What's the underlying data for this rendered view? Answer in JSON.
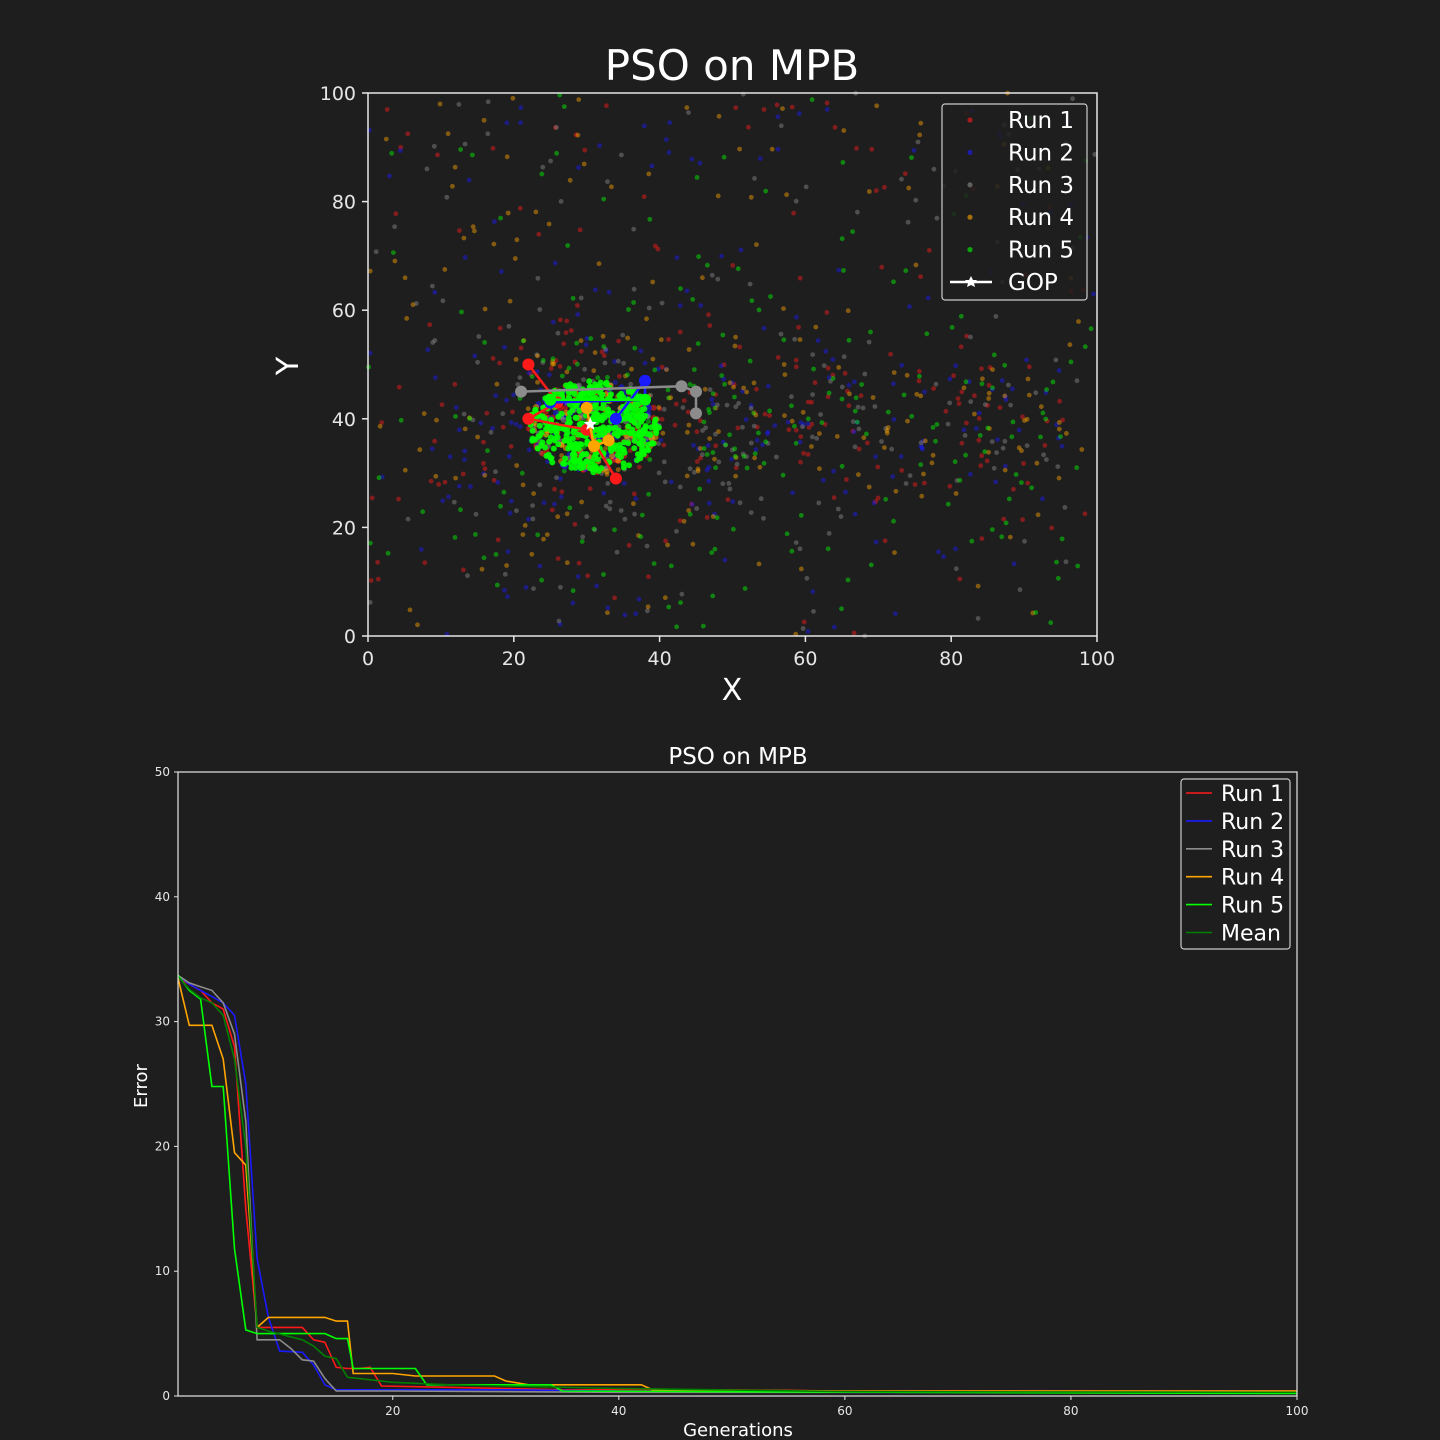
{
  "colors": {
    "background": "#1e1e1e",
    "axis": "#e6e6e6",
    "text": "#ffffff",
    "run1": "#ff1a1a",
    "run2": "#1a1aff",
    "run3": "#8c8c8c",
    "run4": "#ffa500",
    "run5": "#00ff00",
    "mean": "#008000",
    "gop": "#ffffff"
  },
  "chart_data": [
    {
      "type": "scatter",
      "title": "PSO on MPB",
      "xlabel": "X",
      "ylabel": "Y",
      "xlim": [
        0,
        100
      ],
      "ylim": [
        0,
        100
      ],
      "xticks": [
        0,
        20,
        40,
        60,
        80,
        100
      ],
      "yticks": [
        0,
        20,
        40,
        60,
        80,
        100
      ],
      "grid": false,
      "legend_position": "top-right",
      "legend": [
        "Run 1",
        "Run 2",
        "Run 3",
        "Run 4",
        "Run 5",
        "GOP"
      ],
      "swarm_center": {
        "x": 31,
        "y": 39
      },
      "cluster_extent": {
        "x": [
          22,
          40
        ],
        "y": [
          30,
          47
        ]
      },
      "gop": {
        "name": "GOP",
        "x": 30.5,
        "y": 39
      },
      "best_paths": [
        {
          "name": "Run 1",
          "points": [
            [
              22,
              50
            ],
            [
              26,
              43
            ],
            [
              22,
              40
            ],
            [
              30,
              38
            ],
            [
              34,
              29
            ]
          ]
        },
        {
          "name": "Run 2",
          "points": [
            [
              25,
              43
            ],
            [
              38,
              43.5
            ],
            [
              38,
              47
            ],
            [
              34,
              40
            ]
          ]
        },
        {
          "name": "Run 3",
          "points": [
            [
              21,
              45
            ],
            [
              43,
              46
            ],
            [
              45,
              45
            ],
            [
              45,
              41
            ]
          ]
        },
        {
          "name": "Run 4",
          "points": [
            [
              30,
              42
            ],
            [
              31,
              35
            ],
            [
              33,
              36
            ]
          ]
        },
        {
          "name": "Run 5",
          "points": [
            [
              25,
              43.5
            ],
            [
              38,
              43.5
            ]
          ]
        }
      ]
    },
    {
      "type": "line",
      "title": "PSO on MPB",
      "xlabel": "Generations",
      "ylabel": "Error",
      "xlim": [
        1,
        100
      ],
      "ylim": [
        0,
        50
      ],
      "xticks": [
        20,
        40,
        60,
        80,
        100
      ],
      "yticks": [
        0,
        10,
        20,
        30,
        40,
        50
      ],
      "grid": false,
      "legend_position": "top-right",
      "series": [
        {
          "name": "Run 1",
          "points": [
            [
              1,
              33.5
            ],
            [
              2,
              33
            ],
            [
              3,
              32.5
            ],
            [
              4,
              31.5
            ],
            [
              5,
              31
            ],
            [
              6,
              28
            ],
            [
              7,
              15
            ],
            [
              8,
              5.5
            ],
            [
              12,
              5.5
            ],
            [
              13,
              4.5
            ],
            [
              14,
              4.3
            ],
            [
              15,
              2.3
            ],
            [
              16,
              2.2
            ],
            [
              17,
              2.2
            ],
            [
              18,
              2.3
            ],
            [
              19,
              0.8
            ],
            [
              25,
              0.7
            ],
            [
              30,
              0.6
            ],
            [
              35,
              0.5
            ],
            [
              40,
              0.5
            ],
            [
              50,
              0.5
            ],
            [
              60,
              0.4
            ],
            [
              100,
              0.4
            ]
          ]
        },
        {
          "name": "Run 2",
          "points": [
            [
              1,
              33.7
            ],
            [
              2,
              33
            ],
            [
              3,
              32.5
            ],
            [
              4,
              32
            ],
            [
              5,
              31.5
            ],
            [
              6,
              30.5
            ],
            [
              7,
              25
            ],
            [
              8,
              11
            ],
            [
              9,
              6.3
            ],
            [
              10,
              3.6
            ],
            [
              12,
              3.5
            ],
            [
              13,
              2.5
            ],
            [
              14,
              0.9
            ],
            [
              15,
              0.5
            ],
            [
              30,
              0.5
            ],
            [
              40,
              0.4
            ],
            [
              60,
              0.3
            ],
            [
              100,
              0.3
            ]
          ]
        },
        {
          "name": "Run 3",
          "points": [
            [
              1,
              33.7
            ],
            [
              2,
              33.1
            ],
            [
              3,
              32.8
            ],
            [
              4,
              32.5
            ],
            [
              5,
              31.5
            ],
            [
              6,
              29
            ],
            [
              7,
              22
            ],
            [
              8,
              4.5
            ],
            [
              10,
              4.5
            ],
            [
              11,
              3.8
            ],
            [
              12,
              2.9
            ],
            [
              13,
              2.8
            ],
            [
              14,
              1.4
            ],
            [
              15,
              0.4
            ],
            [
              20,
              0.4
            ],
            [
              40,
              0.3
            ],
            [
              100,
              0.3
            ]
          ]
        },
        {
          "name": "Run 4",
          "points": [
            [
              1,
              33.5
            ],
            [
              2,
              29.7
            ],
            [
              3,
              29.7
            ],
            [
              4,
              29.7
            ],
            [
              5,
              27
            ],
            [
              6,
              19.5
            ],
            [
              7,
              18.5
            ],
            [
              8,
              5.5
            ],
            [
              9,
              6.3
            ],
            [
              14,
              6.3
            ],
            [
              15,
              6
            ],
            [
              16,
              6
            ],
            [
              16.5,
              1.8
            ],
            [
              20,
              1.8
            ],
            [
              22,
              1.6
            ],
            [
              29,
              1.6
            ],
            [
              30,
              1.2
            ],
            [
              32,
              0.9
            ],
            [
              42,
              0.9
            ],
            [
              43,
              0.5
            ],
            [
              60,
              0.4
            ],
            [
              100,
              0.4
            ]
          ]
        },
        {
          "name": "Run 5",
          "points": [
            [
              1,
              33.7
            ],
            [
              2,
              32.5
            ],
            [
              3,
              31.8
            ],
            [
              4,
              24.8
            ],
            [
              5,
              24.8
            ],
            [
              6,
              11.8
            ],
            [
              7,
              5.3
            ],
            [
              8,
              5
            ],
            [
              14,
              5
            ],
            [
              15,
              4.6
            ],
            [
              16,
              4.6
            ],
            [
              16.5,
              2.2
            ],
            [
              22,
              2.2
            ],
            [
              23,
              0.9
            ],
            [
              34,
              0.9
            ],
            [
              35,
              0.4
            ],
            [
              65,
              0.3
            ],
            [
              100,
              0.2
            ]
          ]
        },
        {
          "name": "Mean",
          "points": [
            [
              1,
              33.6
            ],
            [
              2,
              32.6
            ],
            [
              3,
              31.9
            ],
            [
              4,
              31.5
            ],
            [
              5,
              30.5
            ],
            [
              6,
              27
            ],
            [
              7,
              20
            ],
            [
              8,
              5.5
            ],
            [
              9,
              5.2
            ],
            [
              12,
              4.5
            ],
            [
              13,
              4
            ],
            [
              14,
              3.2
            ],
            [
              15,
              3
            ],
            [
              16,
              1.5
            ],
            [
              20,
              1.1
            ],
            [
              25,
              0.9
            ],
            [
              30,
              0.8
            ],
            [
              40,
              0.6
            ],
            [
              60,
              0.35
            ],
            [
              100,
              0.3
            ]
          ]
        }
      ]
    }
  ]
}
